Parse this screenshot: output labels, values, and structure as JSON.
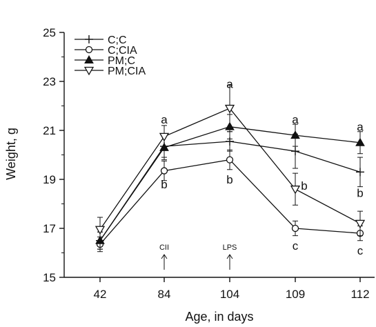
{
  "chart_data": {
    "type": "line",
    "title": "",
    "xlabel": "Age, in days",
    "ylabel": "Weight, g",
    "categories": [
      "42",
      "84",
      "104",
      "109",
      "112"
    ],
    "ylim": [
      15,
      25
    ],
    "yticks": [
      15,
      17,
      19,
      21,
      23,
      25
    ],
    "grid": false,
    "legend_position": "top-left",
    "series": [
      {
        "name": "C;C",
        "marker": "plus",
        "values": [
          16.5,
          20.35,
          20.55,
          20.15,
          19.3
        ],
        "errors": [
          0.35,
          0.45,
          0.4,
          0.7,
          0.6
        ]
      },
      {
        "name": "C;CIA",
        "marker": "circle-open",
        "values": [
          16.35,
          19.35,
          19.8,
          17.0,
          16.8
        ],
        "errors": [
          0.3,
          0.4,
          0.4,
          0.3,
          0.3
        ]
      },
      {
        "name": "PM;C",
        "marker": "triangle-up",
        "values": [
          16.5,
          20.3,
          21.15,
          20.8,
          20.5
        ],
        "errors": [
          0.35,
          0.5,
          0.5,
          0.45,
          0.45
        ]
      },
      {
        "name": "PM;CIA",
        "marker": "triangle-down-open",
        "values": [
          16.95,
          20.75,
          21.9,
          18.6,
          17.2
        ],
        "errors": [
          0.5,
          0.45,
          0.95,
          0.65,
          0.5
        ]
      }
    ],
    "significance_labels": [
      {
        "category": "84",
        "y": 21.45,
        "text": "a"
      },
      {
        "category": "84",
        "y": 18.8,
        "text": "b"
      },
      {
        "category": "104",
        "y": 22.9,
        "text": "a"
      },
      {
        "category": "104",
        "y": 19.0,
        "text": "b"
      },
      {
        "category": "109",
        "y": 21.45,
        "text": "a"
      },
      {
        "category": "109",
        "y": 18.75,
        "text": "b"
      },
      {
        "category": "109",
        "y": 16.3,
        "text": "c"
      },
      {
        "category": "112",
        "y": 21.15,
        "text": "a"
      },
      {
        "category": "112",
        "y": 18.45,
        "text": "b"
      },
      {
        "category": "112",
        "y": 16.1,
        "text": "c"
      }
    ],
    "annotations": [
      {
        "category": "84",
        "text": "CII"
      },
      {
        "category": "104",
        "text": "LPS"
      }
    ]
  }
}
